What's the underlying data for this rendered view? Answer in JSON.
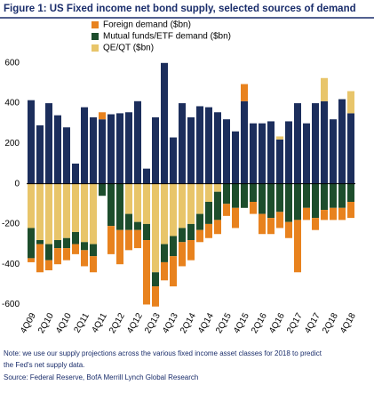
{
  "chart_data": {
    "type": "bar",
    "stacked": true,
    "title": "Figure 1: US Fixed income net bond supply, selected sources of demand",
    "categories": [
      "4Q09",
      null,
      "2Q10",
      null,
      "4Q10",
      null,
      "2Q11",
      null,
      "4Q11",
      null,
      "2Q12",
      null,
      "4Q12",
      null,
      "2Q13",
      null,
      "4Q13",
      null,
      "2Q14",
      null,
      "4Q14",
      null,
      "2Q15",
      null,
      "4Q15",
      null,
      "2Q16",
      null,
      "4Q16",
      null,
      "2Q17",
      null,
      "4Q17",
      null,
      "2Q18",
      null,
      "4Q18"
    ],
    "series": [
      {
        "color": "#1c2e5c",
        "values": [
          415,
          290,
          400,
          340,
          280,
          100,
          380,
          330,
          320,
          345,
          350,
          355,
          410,
          75,
          330,
          600,
          230,
          400,
          330,
          385,
          380,
          355,
          320,
          260,
          410,
          300,
          300,
          310,
          220,
          310,
          400,
          300,
          400,
          410,
          320,
          420,
          350
        ]
      },
      {
        "name": "QE/QT ($bn)",
        "color": "#e8c56a",
        "values": [
          -220,
          -280,
          -300,
          -280,
          -270,
          -240,
          -290,
          -300,
          0,
          0,
          0,
          -150,
          -190,
          -200,
          -440,
          -300,
          -260,
          -220,
          -200,
          -150,
          -90,
          -40,
          0,
          0,
          0,
          0,
          0,
          0,
          15,
          0,
          0,
          0,
          0,
          115,
          0,
          0,
          110
        ]
      },
      {
        "name": "Mutual funds/ETF demand ($bn)",
        "color": "#1d4d2c",
        "values": [
          -150,
          -20,
          -80,
          -40,
          -50,
          -60,
          -40,
          -60,
          -60,
          -210,
          -230,
          -80,
          -40,
          -80,
          -70,
          -90,
          -100,
          -70,
          -80,
          -80,
          -110,
          -140,
          -100,
          -120,
          -120,
          -90,
          -150,
          -170,
          -140,
          -190,
          -180,
          -120,
          -170,
          -130,
          -120,
          -120,
          -90
        ]
      },
      {
        "name": "Foreign demand ($bn)",
        "color": "#e8821e",
        "values": [
          -20,
          -140,
          -50,
          -80,
          -60,
          -50,
          -80,
          -80,
          35,
          -140,
          -170,
          -100,
          -90,
          -320,
          -100,
          -90,
          -150,
          -120,
          -100,
          -60,
          -70,
          -70,
          -60,
          -100,
          85,
          -60,
          -100,
          -80,
          -80,
          -80,
          -260,
          -60,
          -60,
          -50,
          -60,
          -60,
          -80
        ]
      }
    ],
    "ylim": [
      -620,
      630
    ],
    "yticks": [
      600,
      400,
      200,
      0,
      -200,
      -400,
      -600
    ],
    "notes": [
      "Note: we use our supply projections across the various fixed income asset classes for 2018 to predict",
      "the Fed's net supply data.",
      "Source: Federal Reserve, BofA Merrill Lynch Global Research"
    ]
  }
}
